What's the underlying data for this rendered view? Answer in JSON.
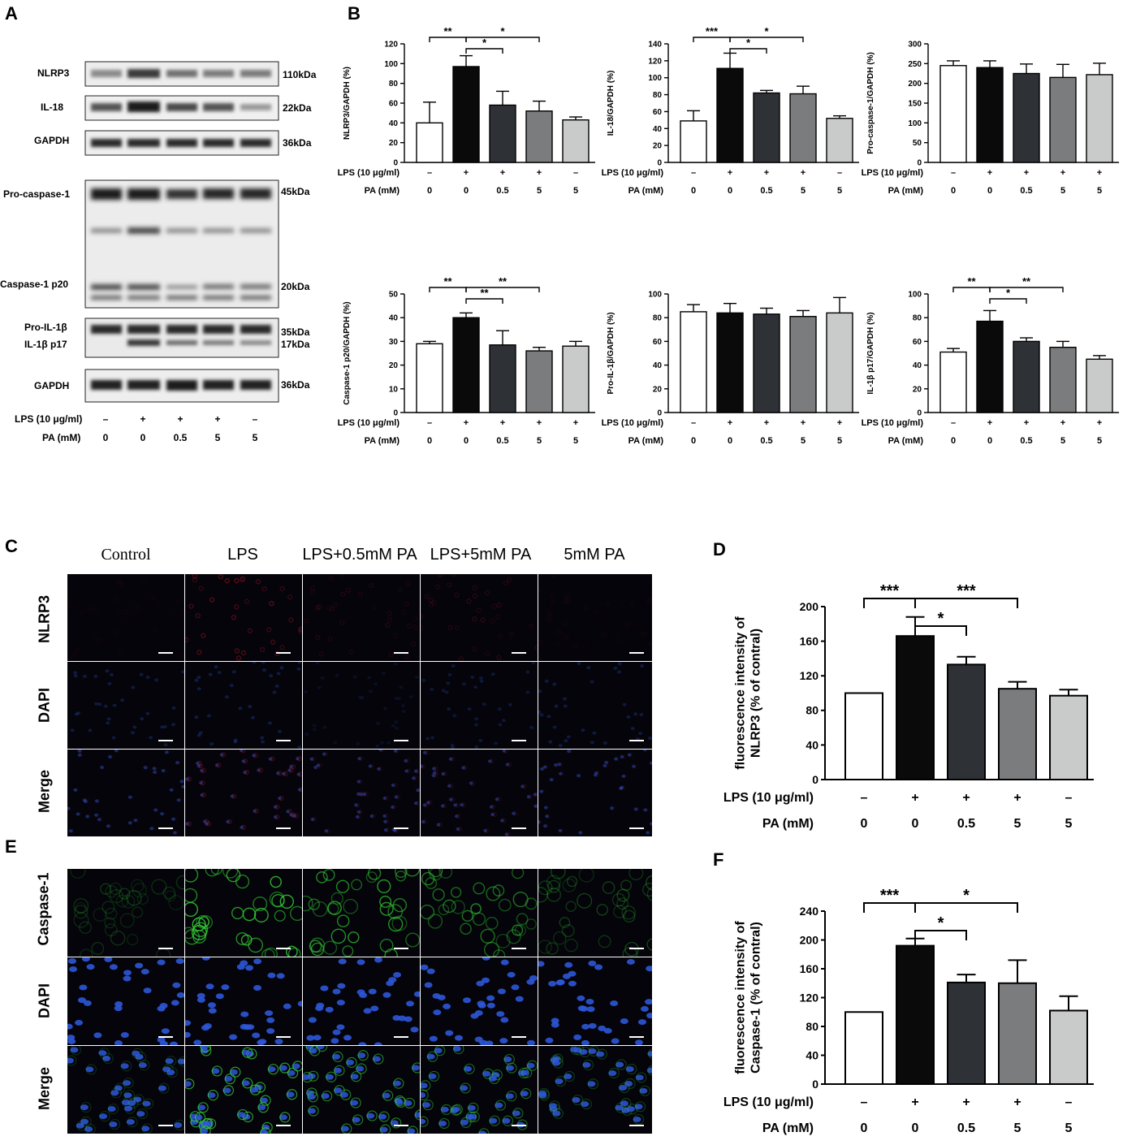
{
  "panels": {
    "A": {
      "letter": "A",
      "upper_labels": [
        "NLRP3",
        "IL-18",
        "GAPDH"
      ],
      "upper_kda": [
        "110kDa",
        "22kDa",
        "36kDa"
      ],
      "lower_labels": {
        "procasp": "Pro-caspase-1",
        "casp20": "Caspase-1 p20",
        "proil": "Pro-IL-1β",
        "il17": "IL-1β p17",
        "gapdh": "GAPDH"
      },
      "lower_kda": {
        "k45": "45kDa",
        "k20": "20kDa",
        "k35": "35kDa",
        "k17": "17kDa",
        "k36": "36kDa"
      },
      "lps_label": "LPS (10 μg/ml)",
      "pa_label": "PA (mM)",
      "lps": [
        "–",
        "+",
        "+",
        "+",
        "–"
      ],
      "pa": [
        "0",
        "0",
        "0.5",
        "5",
        "5"
      ]
    },
    "B": {
      "letter": "B"
    },
    "C": {
      "letter": "C",
      "conditions": [
        "Control",
        "LPS",
        "LPS+0.5mM PA",
        "LPS+5mM PA",
        "5mM PA"
      ],
      "rows": [
        "NLRP3",
        "DAPI",
        "Merge"
      ]
    },
    "D": {
      "letter": "D"
    },
    "E": {
      "letter": "E",
      "rows": [
        "Caspase-1",
        "DAPI",
        "Merge"
      ]
    },
    "F": {
      "letter": "F"
    }
  },
  "colors": {
    "bars": [
      "#ffffff",
      "#0a0a0a",
      "#2e3236",
      "#7a7c7e",
      "#c9cbcb"
    ],
    "nlrp3_stain": "#c0182a",
    "dapi_stain": "#2e56d8",
    "casp_stain": "#33cc33"
  },
  "chart_data": [
    {
      "id": "B1",
      "type": "bar",
      "ylabel": "NLRP3/GAPDH (%)",
      "ylim": [
        0,
        120
      ],
      "yticks": [
        0,
        20,
        40,
        60,
        80,
        100,
        120
      ],
      "categories": [
        "1",
        "2",
        "3",
        "4",
        "5"
      ],
      "values": [
        40,
        97,
        58,
        52,
        43
      ],
      "errors": [
        21,
        11,
        14,
        10,
        3
      ],
      "lps_label": "LPS (10 μg/ml)",
      "pa_label": "PA (mM)",
      "lps": [
        "–",
        "+",
        "+",
        "+",
        "–"
      ],
      "pa": [
        "0",
        "0",
        "0.5",
        "5",
        "5"
      ],
      "sig": [
        {
          "from": 0,
          "to": 1,
          "label": "**"
        },
        {
          "from": 1,
          "to": 2,
          "label": "*"
        },
        {
          "from": 1,
          "to": 3,
          "label": "*"
        }
      ]
    },
    {
      "id": "B2",
      "type": "bar",
      "ylabel": "IL-18/GAPDH (%)",
      "ylim": [
        0,
        140
      ],
      "yticks": [
        0,
        20,
        40,
        60,
        80,
        100,
        120,
        140
      ],
      "categories": [
        "1",
        "2",
        "3",
        "4",
        "5"
      ],
      "values": [
        49,
        111,
        82,
        81,
        52
      ],
      "errors": [
        12,
        18,
        3,
        9,
        3
      ],
      "lps_label": "LPS (10 μg/ml)",
      "pa_label": "PA (mM)",
      "lps": [
        "–",
        "+",
        "+",
        "+",
        "–"
      ],
      "pa": [
        "0",
        "0",
        "0.5",
        "5",
        "5"
      ],
      "sig": [
        {
          "from": 0,
          "to": 1,
          "label": "***"
        },
        {
          "from": 1,
          "to": 2,
          "label": "*"
        },
        {
          "from": 1,
          "to": 3,
          "label": "*"
        }
      ]
    },
    {
      "id": "B3",
      "type": "bar",
      "ylabel": "Pro-caspase-1/GAPDH (%)",
      "ylim": [
        0,
        300
      ],
      "yticks": [
        0,
        50,
        100,
        150,
        200,
        250,
        300
      ],
      "categories": [
        "1",
        "2",
        "3",
        "4",
        "5"
      ],
      "values": [
        245,
        240,
        225,
        215,
        222
      ],
      "errors": [
        12,
        17,
        24,
        33,
        29
      ],
      "lps_label": "LPS (10 μg/ml)",
      "pa_label": "PA (mM)",
      "lps": [
        "–",
        "+",
        "+",
        "+",
        "+"
      ],
      "pa": [
        "0",
        "0",
        "0.5",
        "5",
        "5"
      ],
      "sig": []
    },
    {
      "id": "B4",
      "type": "bar",
      "ylabel": "Caspase-1 p20/GAPDH (%)",
      "ylim": [
        0,
        50
      ],
      "yticks": [
        0,
        10,
        20,
        30,
        40,
        50
      ],
      "categories": [
        "1",
        "2",
        "3",
        "4",
        "5"
      ],
      "values": [
        29,
        40,
        28.5,
        26,
        28
      ],
      "errors": [
        1,
        2,
        6,
        1.5,
        2
      ],
      "lps_label": "LPS (10 μg/ml)",
      "pa_label": "PA (mM)",
      "lps": [
        "–",
        "+",
        "+",
        "+",
        "+"
      ],
      "pa": [
        "0",
        "0",
        "0.5",
        "5",
        "5"
      ],
      "sig": [
        {
          "from": 0,
          "to": 1,
          "label": "**"
        },
        {
          "from": 1,
          "to": 2,
          "label": "**"
        },
        {
          "from": 1,
          "to": 3,
          "label": "**"
        }
      ]
    },
    {
      "id": "B5",
      "type": "bar",
      "ylabel": "Pro-IL-1β/GAPDH (%)",
      "ylim": [
        0,
        100
      ],
      "yticks": [
        0,
        20,
        40,
        60,
        80,
        100
      ],
      "categories": [
        "1",
        "2",
        "3",
        "4",
        "5"
      ],
      "values": [
        85,
        84,
        83,
        81,
        84
      ],
      "errors": [
        6,
        8,
        5,
        5,
        13
      ],
      "lps_label": "LPS (10 μg/ml)",
      "pa_label": "PA (mM)",
      "lps": [
        "–",
        "+",
        "+",
        "+",
        "+"
      ],
      "pa": [
        "0",
        "0",
        "0.5",
        "5",
        "5"
      ],
      "sig": []
    },
    {
      "id": "B6",
      "type": "bar",
      "ylabel": "IL-1β p17/GAPDH (%)",
      "ylim": [
        0,
        100
      ],
      "yticks": [
        0,
        20,
        40,
        60,
        80,
        100
      ],
      "categories": [
        "1",
        "2",
        "3",
        "4",
        "5"
      ],
      "values": [
        51,
        77,
        60,
        55,
        45
      ],
      "errors": [
        3,
        9,
        3,
        5,
        3
      ],
      "lps_label": "LPS (10 μg/ml)",
      "pa_label": "PA (mM)",
      "lps": [
        "–",
        "+",
        "+",
        "+",
        "+"
      ],
      "pa": [
        "0",
        "0",
        "0.5",
        "5",
        "5"
      ],
      "sig": [
        {
          "from": 0,
          "to": 1,
          "label": "**"
        },
        {
          "from": 1,
          "to": 2,
          "label": "*"
        },
        {
          "from": 1,
          "to": 3,
          "label": "**"
        }
      ]
    },
    {
      "id": "D",
      "type": "bar",
      "ylabel": "fluorescence intensity of NLRP3 (% of contral)",
      "ylim": [
        0,
        200
      ],
      "yticks": [
        0,
        40,
        80,
        120,
        160,
        200
      ],
      "categories": [
        "1",
        "2",
        "3",
        "4",
        "5"
      ],
      "values": [
        100,
        166,
        133,
        105,
        97
      ],
      "errors": [
        0,
        22,
        9,
        8,
        7
      ],
      "lps_label": "LPS (10 μg/ml)",
      "pa_label": "PA (mM)",
      "lps": [
        "–",
        "+",
        "+",
        "+",
        "–"
      ],
      "pa": [
        "0",
        "0",
        "0.5",
        "5",
        "5"
      ],
      "sig": [
        {
          "from": 0,
          "to": 1,
          "label": "***"
        },
        {
          "from": 1,
          "to": 2,
          "label": "*"
        },
        {
          "from": 1,
          "to": 3,
          "label": "***"
        }
      ]
    },
    {
      "id": "F",
      "type": "bar",
      "ylabel": "fluorescence intensity of Caspase-1 (% of contral)",
      "ylim": [
        0,
        240
      ],
      "yticks": [
        0,
        40,
        80,
        120,
        160,
        200,
        240
      ],
      "categories": [
        "1",
        "2",
        "3",
        "4",
        "5"
      ],
      "values": [
        100,
        192,
        141,
        140,
        102
      ],
      "errors": [
        0,
        10,
        11,
        32,
        20
      ],
      "lps_label": "LPS (10 μg/ml)",
      "pa_label": "PA (mM)",
      "lps": [
        "–",
        "+",
        "+",
        "+",
        "–"
      ],
      "pa": [
        "0",
        "0",
        "0.5",
        "5",
        "5"
      ],
      "sig": [
        {
          "from": 0,
          "to": 1,
          "label": "***"
        },
        {
          "from": 1,
          "to": 2,
          "label": "*"
        },
        {
          "from": 1,
          "to": 3,
          "label": "*"
        }
      ]
    }
  ]
}
